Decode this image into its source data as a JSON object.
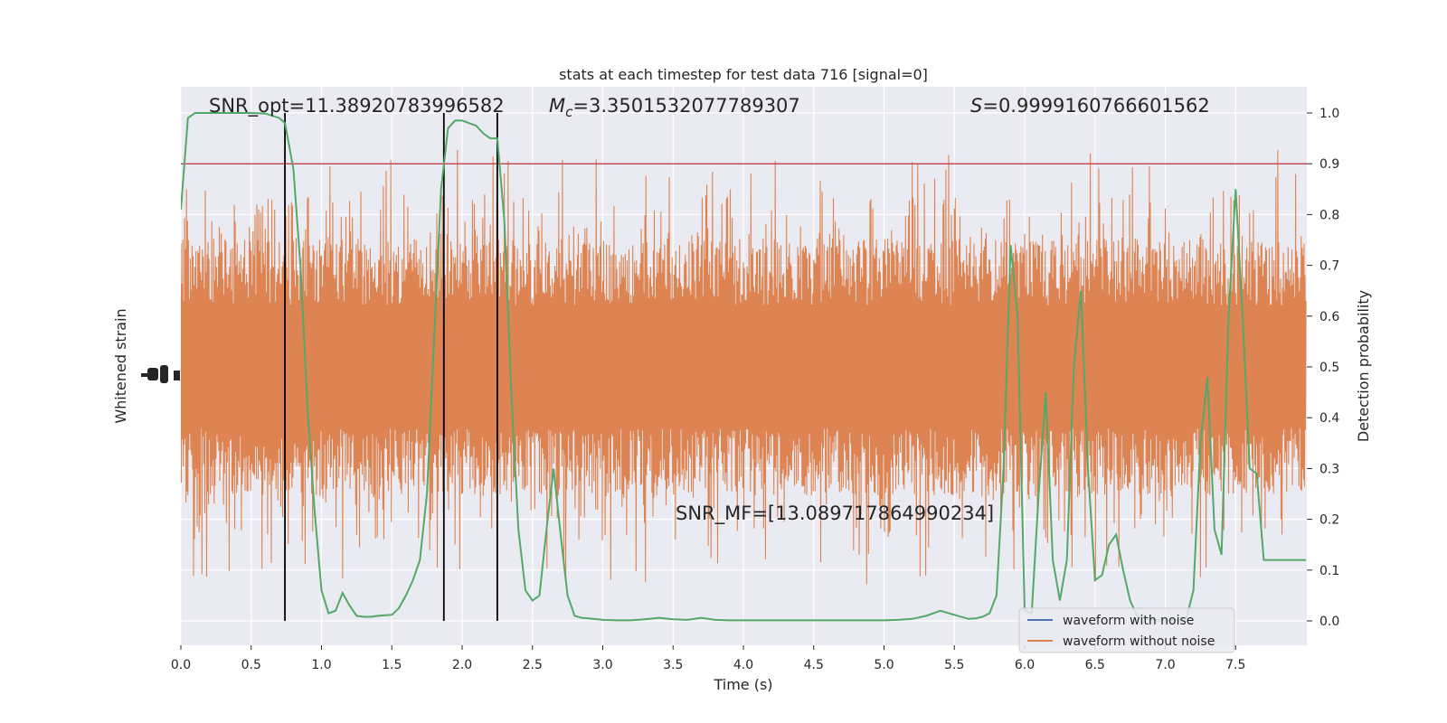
{
  "chart_data": {
    "type": "line",
    "title": "stats at each timestep for test data 716 [signal=0]",
    "xlabel": "Time (s)",
    "ylabel_left": "Whitened strain",
    "ylabel_right": "Detection probability",
    "xlim": [
      0,
      8.0
    ],
    "ylim_right": [
      -0.05,
      1.05
    ],
    "x_ticks": [
      "0.0",
      "0.5",
      "1.0",
      "1.5",
      "2.0",
      "2.5",
      "3.0",
      "3.5",
      "4.0",
      "4.5",
      "5.0",
      "5.5",
      "6.0",
      "6.5",
      "7.0",
      "7.5"
    ],
    "x_tick_values": [
      0,
      0.5,
      1,
      1.5,
      2,
      2.5,
      3,
      3.5,
      4,
      4.5,
      5,
      5.5,
      6,
      6.5,
      7,
      7.5
    ],
    "y_right_ticks": [
      "0.0",
      "0.1",
      "0.2",
      "0.3",
      "0.4",
      "0.5",
      "0.6",
      "0.7",
      "0.8",
      "0.9",
      "1.0"
    ],
    "y_right_tick_values": [
      0,
      0.1,
      0.2,
      0.3,
      0.4,
      0.5,
      0.6,
      0.7,
      0.8,
      0.9,
      1.0
    ],
    "grid": true,
    "threshold": 0.9,
    "vertical_lines_x": [
      0.74,
      1.87,
      2.25
    ],
    "annotations": {
      "snr_opt": "SNR_opt=11.38920783996582",
      "mc_symbol": "M",
      "mc_sub": "c",
      "mc_value": "=3.3501532077789307",
      "s_symbol": "S",
      "s_value": "=0.9999160766601562",
      "snr_mf": "SNR_MF=[13.089717864990234]"
    },
    "legend": {
      "placement": "lower-right",
      "entries": [
        "waveform with noise",
        "waveform without noise"
      ]
    },
    "colors": {
      "background": "#eaeaf2",
      "grid": "#ffffff",
      "waveform_with_noise": "#4c72b0",
      "waveform_without_noise": "#dd8452",
      "probability": "#55a868",
      "threshold": "#c44e52",
      "vertical_lines": "#000000"
    },
    "series": [
      {
        "name": "waveform without noise",
        "style": "dense-noise",
        "band_center": 0.5,
        "band_typical": [
          0.28,
          0.72
        ],
        "peak_max": 1.0,
        "trough_min": -0.01
      },
      {
        "name": "detection probability",
        "x": [
          0.0,
          0.05,
          0.1,
          0.2,
          0.3,
          0.4,
          0.5,
          0.6,
          0.7,
          0.74,
          0.8,
          0.85,
          0.9,
          0.95,
          1.0,
          1.05,
          1.1,
          1.15,
          1.2,
          1.25,
          1.3,
          1.35,
          1.4,
          1.5,
          1.55,
          1.6,
          1.65,
          1.7,
          1.75,
          1.8,
          1.85,
          1.9,
          1.95,
          2.0,
          2.05,
          2.1,
          2.15,
          2.2,
          2.25,
          2.3,
          2.35,
          2.4,
          2.45,
          2.5,
          2.55,
          2.6,
          2.65,
          2.7,
          2.75,
          2.8,
          2.85,
          2.9,
          3.0,
          3.1,
          3.2,
          3.3,
          3.4,
          3.5,
          3.6,
          3.7,
          3.8,
          3.9,
          4.0,
          4.2,
          4.4,
          4.6,
          4.8,
          5.0,
          5.1,
          5.2,
          5.3,
          5.4,
          5.5,
          5.6,
          5.65,
          5.7,
          5.75,
          5.8,
          5.85,
          5.9,
          5.95,
          6.0,
          6.05,
          6.1,
          6.15,
          6.2,
          6.25,
          6.3,
          6.35,
          6.4,
          6.45,
          6.5,
          6.55,
          6.6,
          6.65,
          6.7,
          6.75,
          6.8,
          6.85,
          6.9,
          6.95,
          7.0,
          7.05,
          7.1,
          7.15,
          7.2,
          7.25,
          7.3,
          7.35,
          7.4,
          7.45,
          7.5,
          7.55,
          7.6,
          7.65,
          7.7,
          7.75,
          7.8,
          7.85,
          7.9,
          7.95,
          8.0
        ],
        "y": [
          0.81,
          0.99,
          1.0,
          1.0,
          1.0,
          1.0,
          1.0,
          0.999,
          0.99,
          0.98,
          0.89,
          0.7,
          0.42,
          0.22,
          0.06,
          0.015,
          0.02,
          0.055,
          0.03,
          0.01,
          0.008,
          0.008,
          0.01,
          0.012,
          0.025,
          0.05,
          0.08,
          0.12,
          0.25,
          0.55,
          0.85,
          0.97,
          0.985,
          0.985,
          0.98,
          0.975,
          0.96,
          0.95,
          0.95,
          0.79,
          0.45,
          0.18,
          0.06,
          0.04,
          0.05,
          0.18,
          0.3,
          0.17,
          0.05,
          0.01,
          0.006,
          0.005,
          0.002,
          0.001,
          0.001,
          0.003,
          0.006,
          0.003,
          0.002,
          0.006,
          0.002,
          0.001,
          0.001,
          0.001,
          0.001,
          0.001,
          0.001,
          0.001,
          0.002,
          0.004,
          0.01,
          0.02,
          0.012,
          0.004,
          0.005,
          0.008,
          0.015,
          0.05,
          0.3,
          0.74,
          0.6,
          0.02,
          0.015,
          0.25,
          0.45,
          0.12,
          0.04,
          0.12,
          0.5,
          0.65,
          0.3,
          0.08,
          0.09,
          0.15,
          0.17,
          0.1,
          0.04,
          0.01,
          0.005,
          0.002,
          0.001,
          0.001,
          0.001,
          0.001,
          0.005,
          0.06,
          0.35,
          0.48,
          0.18,
          0.13,
          0.6,
          0.85,
          0.6,
          0.3,
          0.29,
          0.12,
          0.12,
          0.12,
          0.12,
          0.12,
          0.12,
          0.12
        ]
      }
    ]
  }
}
